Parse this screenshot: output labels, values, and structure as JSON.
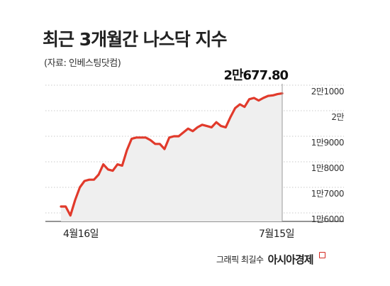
{
  "title": "최근 3개월간 나스닥 지수",
  "source": "(자료: 인베스팅닷컴)",
  "credit": "그래픽 최길수",
  "brand": "아시아경제",
  "colors": {
    "line": "#e13a2b",
    "fill": "#efefef",
    "grid": "#c9c9c9"
  },
  "chart_data": {
    "type": "area",
    "title": "최근 3개월간 나스닥 지수",
    "ylim": [
      15800,
      21200
    ],
    "yticks": [
      16000,
      17000,
      18000,
      19000,
      20000,
      21000
    ],
    "ytick_labels": [
      "1만6000",
      "1만7000",
      "1만8000",
      "1만9000",
      "2만",
      "2만1000"
    ],
    "xtick_labels": [
      "4월16일",
      "7월15일"
    ],
    "last_value_label": "2만677.80",
    "grid": true,
    "values": [
      16250,
      16250,
      15900,
      16500,
      17000,
      17250,
      17300,
      17300,
      17500,
      17900,
      17700,
      17650,
      17900,
      17850,
      18450,
      18900,
      18950,
      18950,
      18950,
      18850,
      18700,
      18700,
      18500,
      18950,
      19000,
      19000,
      19150,
      19300,
      19200,
      19350,
      19450,
      19400,
      19350,
      19550,
      19400,
      19350,
      19750,
      20100,
      20250,
      20150,
      20450,
      20500,
      20400,
      20500,
      20580,
      20600,
      20650,
      20677.8
    ]
  }
}
